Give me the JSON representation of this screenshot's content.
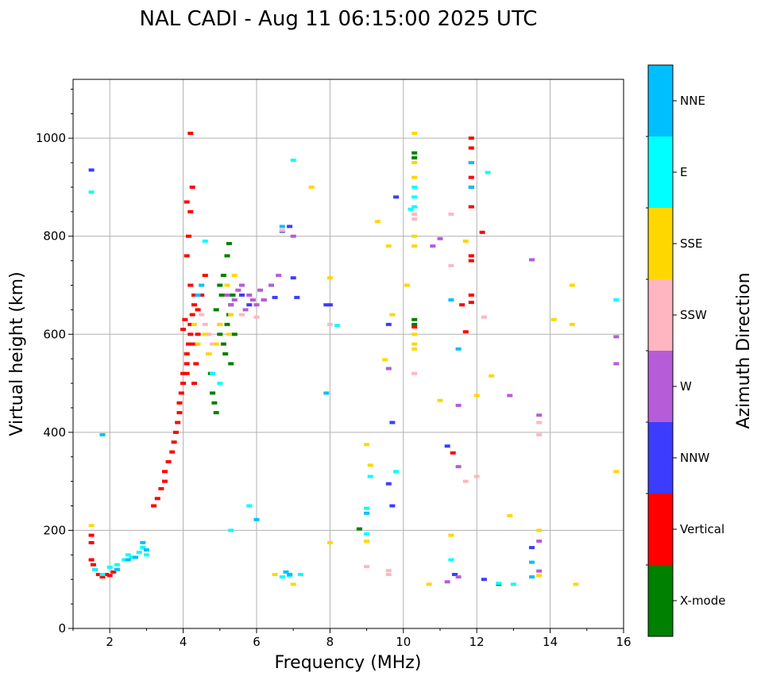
{
  "chart_data": {
    "type": "scatter",
    "title": "NAL CADI - Aug 11 06:15:00 2025 UTC",
    "xlabel": "Frequency (MHz)",
    "ylabel": "Virtual height (km)",
    "xlim": [
      1,
      16
    ],
    "ylim": [
      0,
      1120
    ],
    "xticks": [
      2,
      4,
      6,
      8,
      10,
      12,
      14,
      16
    ],
    "yticks": [
      0,
      200,
      400,
      600,
      800,
      1000
    ],
    "grid": true,
    "colorbar": {
      "title": "Azimuth Direction",
      "categories": [
        {
          "label": "X-mode",
          "color": "#008000"
        },
        {
          "label": "Vertical",
          "color": "#ff0000"
        },
        {
          "label": "NNW",
          "color": "#3c3cff"
        },
        {
          "label": "W",
          "color": "#b65cd8"
        },
        {
          "label": "SSW",
          "color": "#ffb6c1"
        },
        {
          "label": "SSE",
          "color": "#ffd700"
        },
        {
          "label": "E",
          "color": "#00ffff"
        },
        {
          "label": "NNE",
          "color": "#00bfff"
        }
      ]
    },
    "series": [
      {
        "name": "Vertical",
        "color": "#ff0000",
        "points": [
          [
            1.5,
            190
          ],
          [
            1.5,
            175
          ],
          [
            1.5,
            140
          ],
          [
            1.55,
            130
          ],
          [
            1.6,
            120
          ],
          [
            1.7,
            110
          ],
          [
            1.8,
            105
          ],
          [
            1.9,
            110
          ],
          [
            2.0,
            108
          ],
          [
            2.1,
            115
          ],
          [
            3.2,
            250
          ],
          [
            3.3,
            265
          ],
          [
            3.4,
            285
          ],
          [
            3.5,
            300
          ],
          [
            3.5,
            320
          ],
          [
            3.6,
            340
          ],
          [
            3.7,
            360
          ],
          [
            3.75,
            380
          ],
          [
            3.8,
            400
          ],
          [
            3.85,
            420
          ],
          [
            3.9,
            440
          ],
          [
            3.9,
            460
          ],
          [
            3.95,
            480
          ],
          [
            4.0,
            500
          ],
          [
            4.0,
            520
          ],
          [
            4.1,
            540
          ],
          [
            4.1,
            560
          ],
          [
            4.15,
            580
          ],
          [
            4.2,
            600
          ],
          [
            4.2,
            620
          ],
          [
            4.25,
            640
          ],
          [
            4.3,
            660
          ],
          [
            4.3,
            680
          ],
          [
            4.2,
            700
          ],
          [
            4.1,
            760
          ],
          [
            4.15,
            800
          ],
          [
            4.2,
            850
          ],
          [
            4.1,
            870
          ],
          [
            4.25,
            900
          ],
          [
            4.2,
            1010
          ],
          [
            4.0,
            610
          ],
          [
            4.05,
            630
          ],
          [
            4.3,
            580
          ],
          [
            4.35,
            540
          ],
          [
            4.4,
            650
          ],
          [
            4.5,
            680
          ],
          [
            4.6,
            720
          ],
          [
            4.1,
            520
          ],
          [
            4.4,
            600
          ],
          [
            4.3,
            500
          ],
          [
            11.85,
            1000
          ],
          [
            11.85,
            980
          ],
          [
            11.85,
            950
          ],
          [
            11.85,
            920
          ],
          [
            11.85,
            900
          ],
          [
            11.85,
            860
          ],
          [
            11.85,
            760
          ],
          [
            11.85,
            750
          ],
          [
            11.85,
            680
          ],
          [
            11.85,
            665
          ],
          [
            10.3,
            615
          ],
          [
            11.6,
            660
          ],
          [
            11.7,
            605
          ],
          [
            11.35,
            358
          ],
          [
            12.15,
            808
          ]
        ]
      },
      {
        "name": "X-mode",
        "color": "#008000",
        "points": [
          [
            4.7,
            560
          ],
          [
            4.75,
            520
          ],
          [
            4.8,
            480
          ],
          [
            4.85,
            460
          ],
          [
            4.9,
            440
          ],
          [
            5.0,
            600
          ],
          [
            5.1,
            580
          ],
          [
            5.15,
            560
          ],
          [
            5.2,
            620
          ],
          [
            5.25,
            640
          ],
          [
            5.3,
            660
          ],
          [
            5.35,
            680
          ],
          [
            5.0,
            700
          ],
          [
            5.1,
            720
          ],
          [
            5.2,
            760
          ],
          [
            5.25,
            785
          ],
          [
            4.9,
            650
          ],
          [
            5.05,
            680
          ],
          [
            5.4,
            600
          ],
          [
            5.3,
            540
          ],
          [
            10.3,
            960
          ],
          [
            10.3,
            970
          ],
          [
            10.3,
            630
          ],
          [
            10.3,
            620
          ],
          [
            8.8,
            203
          ],
          [
            12.6,
            90
          ]
        ]
      },
      {
        "name": "NNW",
        "color": "#3c3cff",
        "points": [
          [
            5.6,
            680
          ],
          [
            5.8,
            660
          ],
          [
            6.2,
            670
          ],
          [
            6.5,
            675
          ],
          [
            7.0,
            715
          ],
          [
            7.1,
            675
          ],
          [
            7.9,
            660
          ],
          [
            9.6,
            620
          ],
          [
            9.7,
            420
          ],
          [
            9.7,
            250
          ],
          [
            9.6,
            295
          ],
          [
            9.8,
            880
          ],
          [
            11.2,
            372
          ],
          [
            12.2,
            100
          ],
          [
            13.5,
            165
          ],
          [
            1.5,
            935
          ],
          [
            6.7,
            810
          ],
          [
            6.9,
            820
          ],
          [
            11.4,
            110
          ],
          [
            8.0,
            660
          ]
        ]
      },
      {
        "name": "W",
        "color": "#b65cd8",
        "points": [
          [
            5.2,
            680
          ],
          [
            5.4,
            670
          ],
          [
            5.5,
            690
          ],
          [
            5.6,
            700
          ],
          [
            5.7,
            650
          ],
          [
            5.8,
            680
          ],
          [
            6.0,
            660
          ],
          [
            6.2,
            670
          ],
          [
            6.4,
            700
          ],
          [
            6.6,
            720
          ],
          [
            5.3,
            660
          ],
          [
            5.9,
            670
          ],
          [
            6.1,
            690
          ],
          [
            7.0,
            800
          ],
          [
            9.6,
            530
          ],
          [
            11.5,
            330
          ],
          [
            11.5,
            455
          ],
          [
            12.9,
            475
          ],
          [
            13.5,
            752
          ],
          [
            13.7,
            435
          ],
          [
            13.7,
            178
          ],
          [
            13.7,
            117
          ],
          [
            15.8,
            540
          ],
          [
            15.8,
            595
          ],
          [
            11.2,
            95
          ],
          [
            11.5,
            105
          ],
          [
            11.0,
            795
          ],
          [
            10.8,
            780
          ]
        ]
      },
      {
        "name": "SSW",
        "color": "#ffb6c1",
        "points": [
          [
            4.5,
            640
          ],
          [
            4.6,
            620
          ],
          [
            4.7,
            600
          ],
          [
            4.8,
            580
          ],
          [
            5.0,
            620
          ],
          [
            5.6,
            640
          ],
          [
            6.0,
            635
          ],
          [
            6.7,
            812
          ],
          [
            9.6,
            118
          ],
          [
            10.3,
            835
          ],
          [
            10.3,
            845
          ],
          [
            10.3,
            520
          ],
          [
            11.3,
            740
          ],
          [
            11.3,
            845
          ],
          [
            11.7,
            300
          ],
          [
            12.0,
            310
          ],
          [
            12.2,
            635
          ],
          [
            13.7,
            395
          ],
          [
            13.7,
            420
          ],
          [
            9.0,
            126
          ],
          [
            8.0,
            620
          ],
          [
            9.6,
            110
          ]
        ]
      },
      {
        "name": "SSE",
        "color": "#ffd700",
        "points": [
          [
            4.3,
            620
          ],
          [
            4.4,
            580
          ],
          [
            4.6,
            600
          ],
          [
            4.7,
            560
          ],
          [
            4.9,
            580
          ],
          [
            5.0,
            620
          ],
          [
            5.2,
            700
          ],
          [
            5.25,
            600
          ],
          [
            5.3,
            640
          ],
          [
            5.4,
            720
          ],
          [
            10.3,
            1010
          ],
          [
            10.3,
            950
          ],
          [
            10.3,
            920
          ],
          [
            10.3,
            800
          ],
          [
            10.3,
            780
          ],
          [
            10.3,
            600
          ],
          [
            10.3,
            580
          ],
          [
            10.3,
            570
          ],
          [
            7.5,
            900
          ],
          [
            8.0,
            715
          ],
          [
            9.0,
            375
          ],
          [
            9.1,
            333
          ],
          [
            9.3,
            830
          ],
          [
            9.5,
            548
          ],
          [
            9.6,
            780
          ],
          [
            9.7,
            640
          ],
          [
            10.1,
            700
          ],
          [
            10.7,
            90
          ],
          [
            11.0,
            465
          ],
          [
            11.3,
            190
          ],
          [
            11.7,
            790
          ],
          [
            12.0,
            475
          ],
          [
            12.4,
            515
          ],
          [
            12.9,
            230
          ],
          [
            13.7,
            200
          ],
          [
            13.7,
            108
          ],
          [
            14.1,
            630
          ],
          [
            14.6,
            700
          ],
          [
            14.6,
            620
          ],
          [
            14.7,
            90
          ],
          [
            15.8,
            320
          ],
          [
            9.0,
            178
          ],
          [
            8.0,
            175
          ],
          [
            1.5,
            210
          ],
          [
            6.5,
            110
          ],
          [
            7.0,
            90
          ]
        ]
      },
      {
        "name": "E",
        "color": "#00ffff",
        "points": [
          [
            1.6,
            120
          ],
          [
            1.8,
            110
          ],
          [
            2.0,
            125
          ],
          [
            2.2,
            130
          ],
          [
            2.4,
            140
          ],
          [
            2.5,
            150
          ],
          [
            2.6,
            145
          ],
          [
            2.8,
            155
          ],
          [
            2.9,
            165
          ],
          [
            3.0,
            150
          ],
          [
            4.6,
            790
          ],
          [
            4.8,
            520
          ],
          [
            5.0,
            500
          ],
          [
            10.3,
            900
          ],
          [
            10.3,
            880
          ],
          [
            10.3,
            860
          ],
          [
            10.2,
            855
          ],
          [
            9.0,
            245
          ],
          [
            9.0,
            193
          ],
          [
            9.1,
            310
          ],
          [
            6.7,
            105
          ],
          [
            6.9,
            108
          ],
          [
            7.2,
            110
          ],
          [
            8.2,
            618
          ],
          [
            11.3,
            140
          ],
          [
            12.3,
            930
          ],
          [
            12.6,
            92
          ],
          [
            13.0,
            90
          ],
          [
            15.8,
            670
          ],
          [
            7.0,
            955
          ],
          [
            1.5,
            890
          ],
          [
            5.3,
            200
          ],
          [
            5.8,
            250
          ],
          [
            9.8,
            320
          ]
        ]
      },
      {
        "name": "NNE",
        "color": "#00bfff",
        "points": [
          [
            2.2,
            120
          ],
          [
            2.5,
            140
          ],
          [
            2.7,
            145
          ],
          [
            2.9,
            175
          ],
          [
            3.0,
            160
          ],
          [
            4.4,
            680
          ],
          [
            4.5,
            700
          ],
          [
            11.85,
            950
          ],
          [
            11.85,
            900
          ],
          [
            13.5,
            135
          ],
          [
            13.5,
            105
          ],
          [
            6.8,
            115
          ],
          [
            6.9,
            110
          ],
          [
            11.3,
            670
          ],
          [
            11.5,
            570
          ],
          [
            9.0,
            235
          ],
          [
            1.8,
            395
          ],
          [
            6.0,
            222
          ],
          [
            6.7,
            820
          ],
          [
            7.9,
            480
          ]
        ]
      }
    ]
  }
}
